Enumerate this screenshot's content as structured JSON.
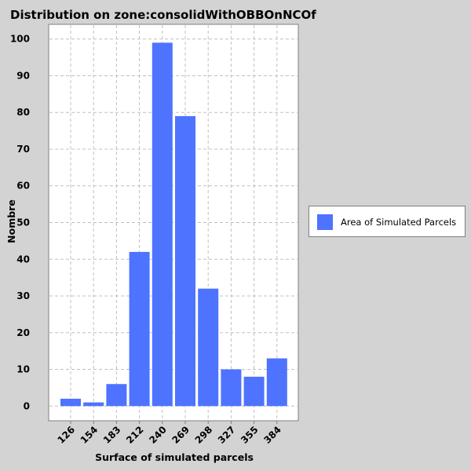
{
  "chart_data": {
    "type": "bar",
    "title": "Distribution on zone:consolidWithOBBOnNCOf",
    "xlabel": "Surface of simulated parcels",
    "ylabel": "Nombre",
    "categories": [
      "126",
      "154",
      "183",
      "212",
      "240",
      "269",
      "298",
      "327",
      "355",
      "384"
    ],
    "series": [
      {
        "name": "Area of Simulated Parcels",
        "values": [
          2,
          1,
          6,
          42,
          99,
          79,
          32,
          10,
          8,
          13
        ]
      }
    ],
    "ylim": [
      -4,
      104
    ],
    "yticks": [
      0,
      10,
      20,
      30,
      40,
      50,
      60,
      70,
      80,
      90,
      100
    ],
    "grid": true,
    "legend": "right",
    "colors": {
      "bar": "#4e73ff",
      "background": "#d3d3d3",
      "plot": "#ffffff",
      "grid": "#c0c0c0"
    }
  }
}
